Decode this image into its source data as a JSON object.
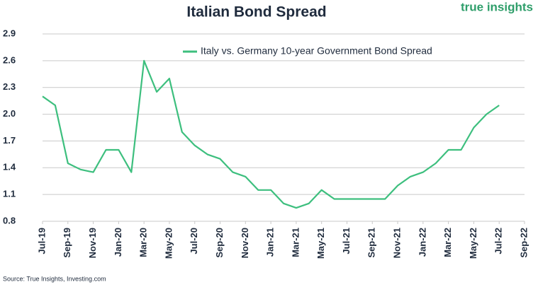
{
  "chart_data": {
    "type": "line",
    "title": "Italian Bond Spread",
    "logo": "true insights",
    "source": "Source: True Insights, Investing.com",
    "legend_position": "top",
    "grid": true,
    "x": [
      "2019-07",
      "2019-08",
      "2019-09",
      "2019-10",
      "2019-11",
      "2019-12",
      "2020-01",
      "2020-02",
      "2020-03",
      "2020-04",
      "2020-05",
      "2020-06",
      "2020-07",
      "2020-08",
      "2020-09",
      "2020-10",
      "2020-11",
      "2020-12",
      "2021-01",
      "2021-02",
      "2021-03",
      "2021-04",
      "2021-05",
      "2021-06",
      "2021-07",
      "2021-08",
      "2021-09",
      "2021-10",
      "2021-11",
      "2021-12",
      "2022-01",
      "2022-02",
      "2022-03",
      "2022-04",
      "2022-05",
      "2022-06",
      "2022-07"
    ],
    "series": [
      {
        "name": "Italy vs. Germany 10-year Government Bond Spread",
        "color": "#3dbf7e",
        "values": [
          2.2,
          2.1,
          1.45,
          1.38,
          1.35,
          1.6,
          1.6,
          1.35,
          2.6,
          2.25,
          2.4,
          1.8,
          1.65,
          1.55,
          1.5,
          1.35,
          1.3,
          1.15,
          1.15,
          1.0,
          0.95,
          1.0,
          1.15,
          1.05,
          1.05,
          1.05,
          1.05,
          1.05,
          1.2,
          1.3,
          1.35,
          1.45,
          1.6,
          1.6,
          1.85,
          2.0,
          2.1
        ]
      }
    ],
    "xlim": [
      "2019-07",
      "2022-09"
    ],
    "xticks": [
      {
        "value": "2019-07",
        "label": "Jul-19"
      },
      {
        "value": "2019-09",
        "label": "Sep-19"
      },
      {
        "value": "2019-11",
        "label": "Nov-19"
      },
      {
        "value": "2020-01",
        "label": "Jan-20"
      },
      {
        "value": "2020-03",
        "label": "Mar-20"
      },
      {
        "value": "2020-05",
        "label": "May-20"
      },
      {
        "value": "2020-07",
        "label": "Jul-20"
      },
      {
        "value": "2020-09",
        "label": "Sep-20"
      },
      {
        "value": "2020-11",
        "label": "Nov-20"
      },
      {
        "value": "2021-01",
        "label": "Jan-21"
      },
      {
        "value": "2021-03",
        "label": "Mar-21"
      },
      {
        "value": "2021-05",
        "label": "May-21"
      },
      {
        "value": "2021-07",
        "label": "Jul-21"
      },
      {
        "value": "2021-09",
        "label": "Sep-21"
      },
      {
        "value": "2021-11",
        "label": "Nov-21"
      },
      {
        "value": "2022-01",
        "label": "Jan-22"
      },
      {
        "value": "2022-03",
        "label": "Mar-22"
      },
      {
        "value": "2022-05",
        "label": "May-22"
      },
      {
        "value": "2022-07",
        "label": "Jul-22"
      },
      {
        "value": "2022-09",
        "label": "Sep-22"
      }
    ],
    "ylim": [
      0.8,
      2.9
    ],
    "yticks": [
      0.8,
      1.1,
      1.4,
      1.7,
      {
        "value": 2,
        "label": "2.0"
      },
      2.3,
      2.6,
      2.9
    ]
  }
}
